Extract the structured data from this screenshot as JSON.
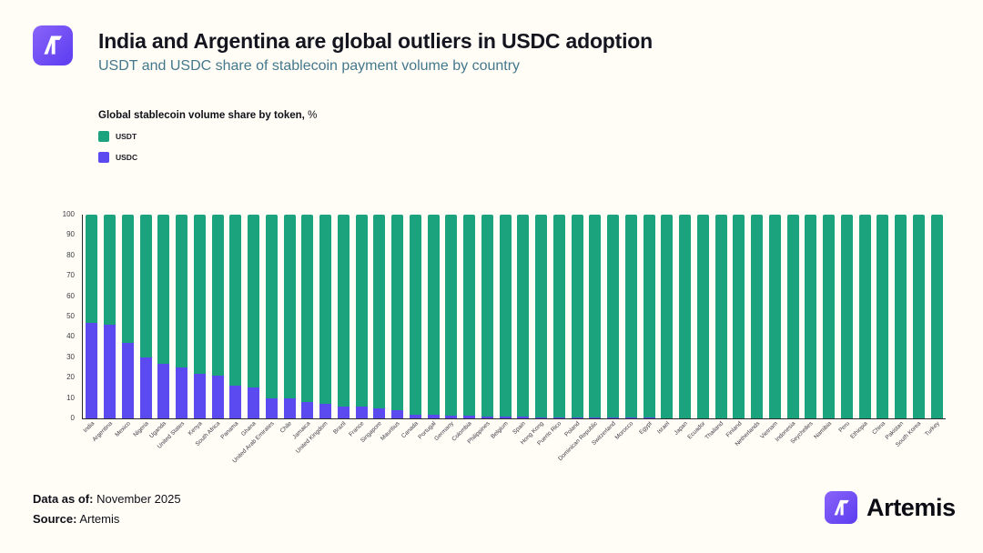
{
  "header": {
    "title": "India and Argentina are global outliers in USDC adoption",
    "subtitle": "USDT and USDC share of stablecoin payment volume by country"
  },
  "legend": {
    "title": "Global stablecoin volume share by token,",
    "title_suffix": "%",
    "items": [
      {
        "label": "USDT",
        "color": "#1aa37c"
      },
      {
        "label": "USDC",
        "color": "#5b4af0"
      }
    ]
  },
  "chart_data": {
    "type": "bar",
    "stacked": true,
    "title": "Global stablecoin volume share by token, %",
    "xlabel": "",
    "ylabel": "",
    "ylim": [
      0,
      100
    ],
    "y_ticks": [
      0,
      10,
      20,
      30,
      40,
      50,
      60,
      70,
      80,
      90,
      100
    ],
    "legend_position": "top-left",
    "grid": false,
    "categories": [
      "India",
      "Argentina",
      "Mexico",
      "Nigeria",
      "Uganda",
      "United States",
      "Kenya",
      "South Africa",
      "Panama",
      "Ghana",
      "United Arab Emirates",
      "Chile",
      "Jamaica",
      "United Kingdom",
      "Brazil",
      "France",
      "Singapore",
      "Mauritius",
      "Canada",
      "Portugal",
      "Germany",
      "Colombia",
      "Philippines",
      "Belgium",
      "Spain",
      "Hong Kong",
      "Puerto Rico",
      "Poland",
      "Dominican Republic",
      "Switzerland",
      "Morocco",
      "Egypt",
      "Israel",
      "Japan",
      "Ecuador",
      "Thailand",
      "Finland",
      "Netherlands",
      "Vietnam",
      "Indonesia",
      "Seychelles",
      "Namibia",
      "Peru",
      "Ethiopia",
      "China",
      "Pakistan",
      "South Korea",
      "Turkey"
    ],
    "series": [
      {
        "name": "USDT",
        "color": "#1aa37c",
        "values": [
          53,
          54,
          63,
          70,
          73,
          75,
          78,
          79,
          84,
          85,
          90,
          90,
          92,
          93,
          94,
          94,
          95,
          96,
          98,
          98,
          98.5,
          98.8,
          99,
          99,
          99.2,
          99.4,
          99.5,
          99.5,
          99.6,
          99.6,
          99.7,
          99.7,
          99.8,
          99.8,
          99.8,
          99.9,
          99.9,
          99.9,
          99.9,
          99.9,
          99.9,
          100,
          100,
          100,
          100,
          100,
          100,
          100
        ]
      },
      {
        "name": "USDC",
        "color": "#5b4af0",
        "values": [
          47,
          46,
          37,
          30,
          27,
          25,
          22,
          21,
          16,
          15,
          10,
          10,
          8,
          7,
          6,
          6,
          5,
          4,
          2,
          2,
          1.5,
          1.2,
          1,
          1,
          0.8,
          0.6,
          0.5,
          0.5,
          0.4,
          0.4,
          0.3,
          0.3,
          0.2,
          0.2,
          0.2,
          0.1,
          0.1,
          0.1,
          0.1,
          0.1,
          0.1,
          0,
          0,
          0,
          0,
          0,
          0,
          0
        ]
      }
    ]
  },
  "footer": {
    "data_as_of_label": "Data as of:",
    "data_as_of_value": "November 2025",
    "source_label": "Source:",
    "source_value": "Artemis",
    "brand": "Artemis"
  }
}
